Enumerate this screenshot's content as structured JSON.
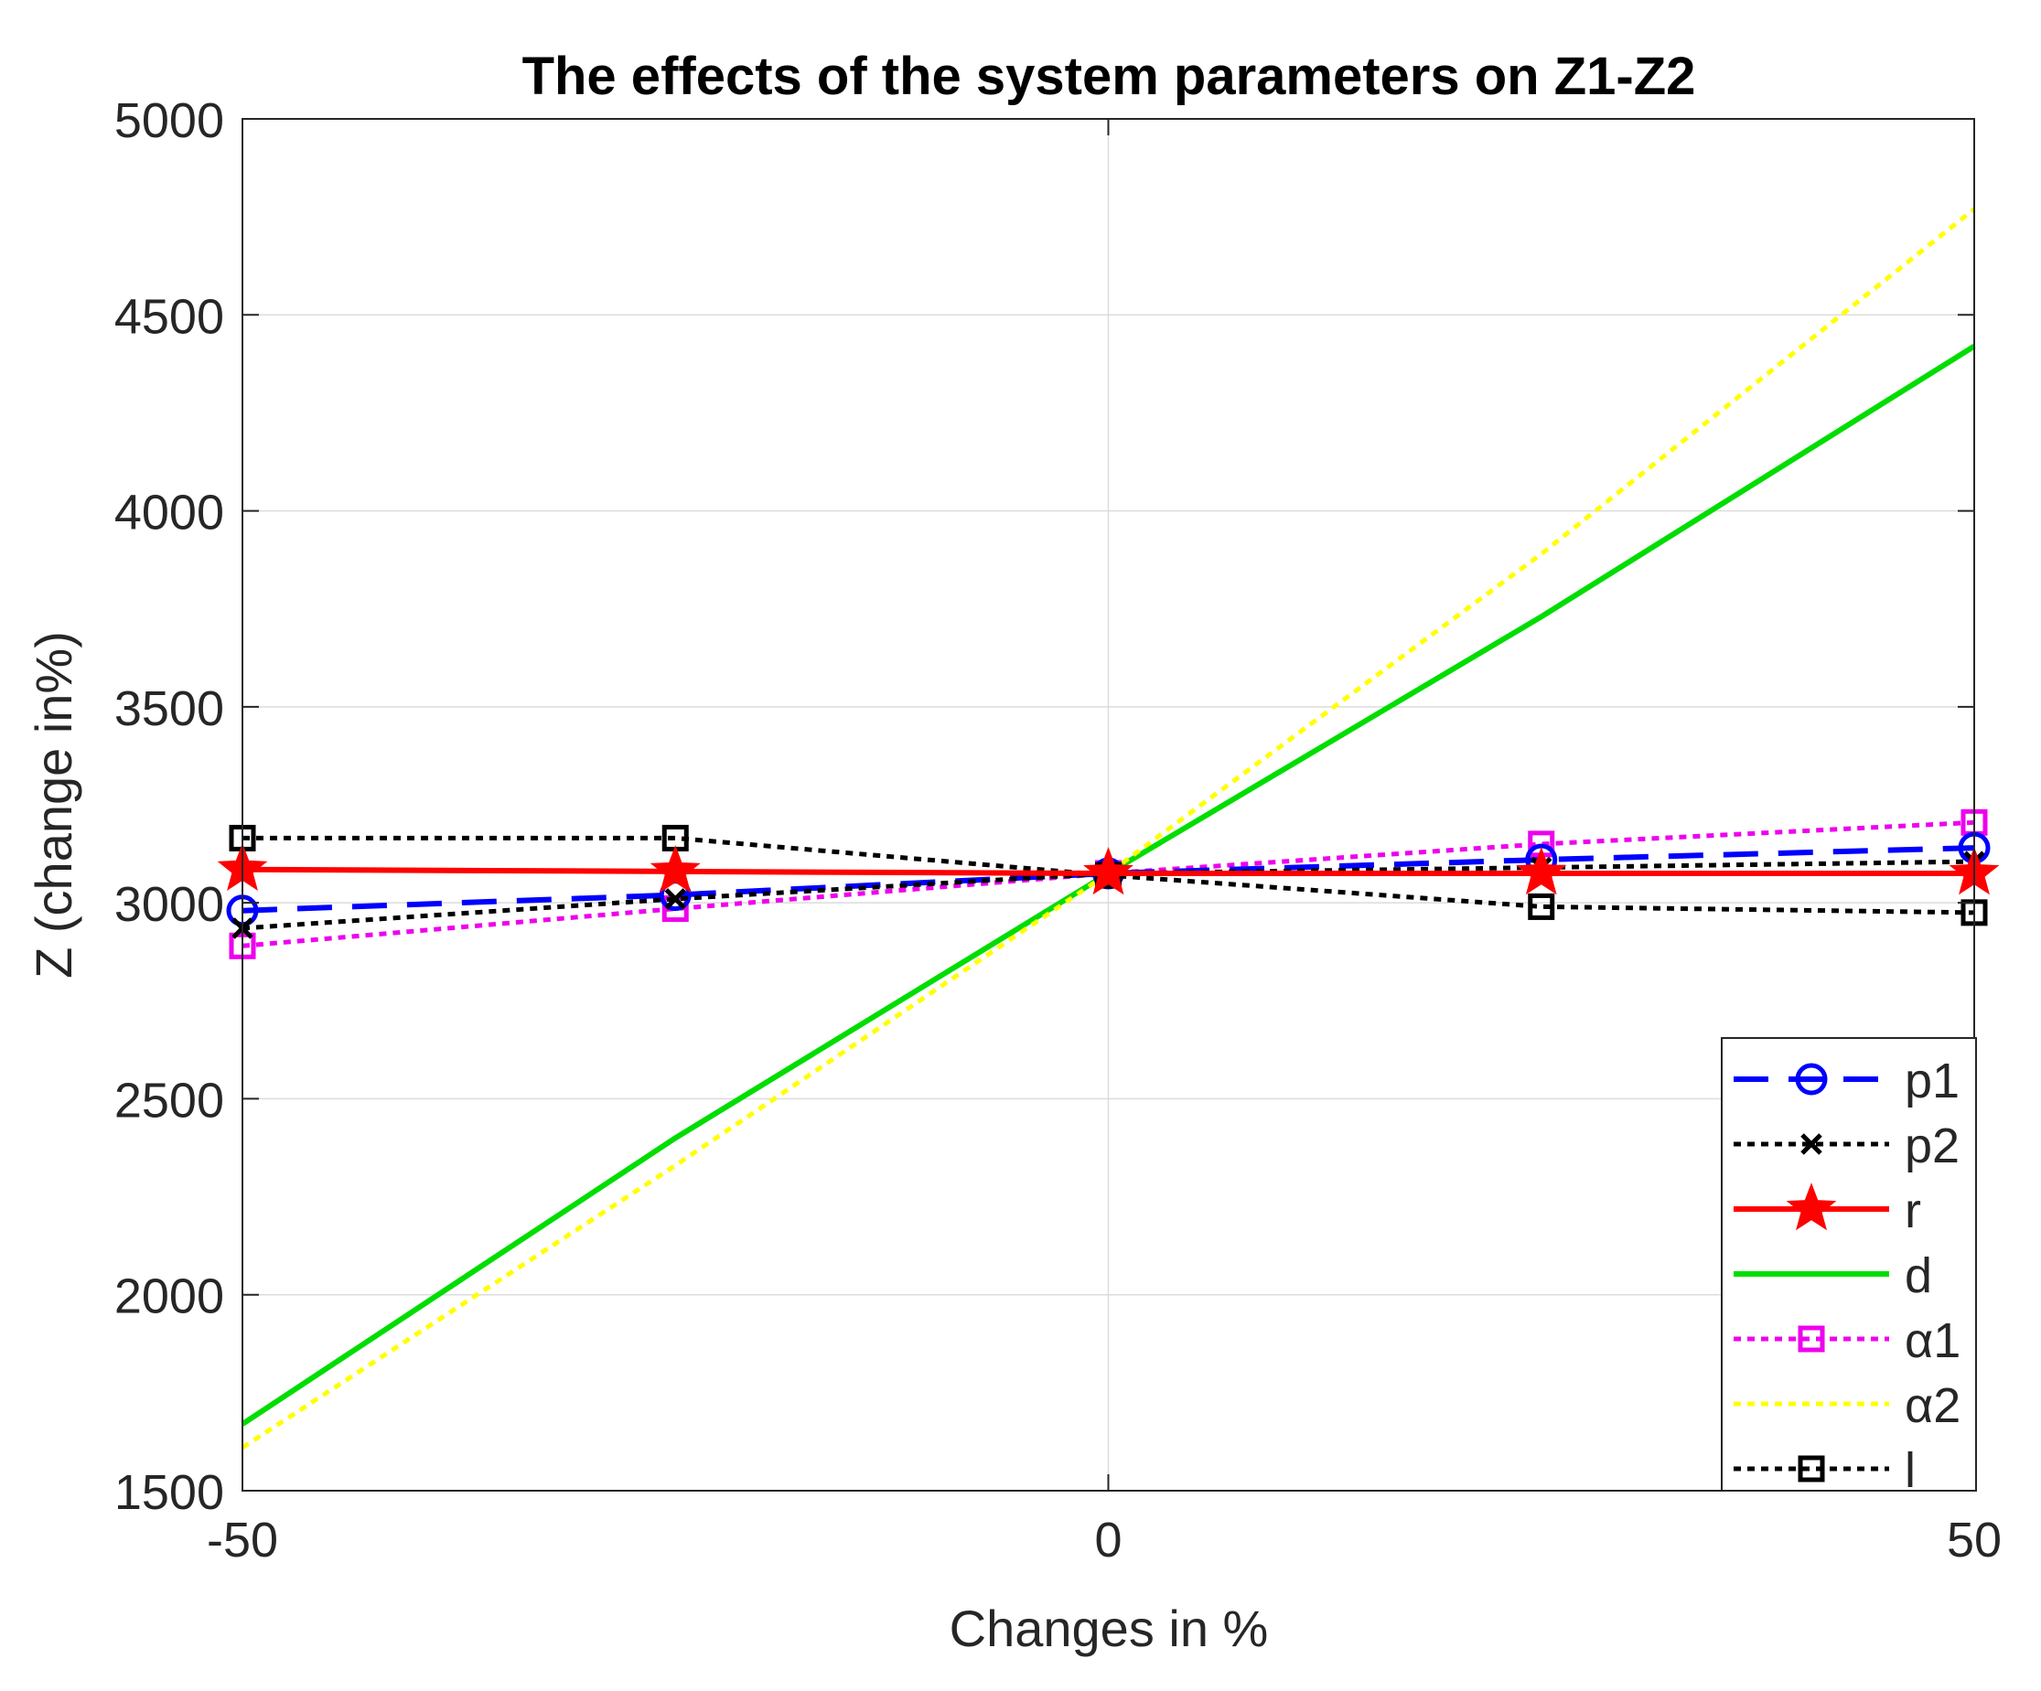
{
  "chart_data": {
    "type": "line",
    "title": "The effects of the system parameters on Z1-Z2",
    "xlabel": "Changes in %",
    "ylabel": "Z (change in%)",
    "xlim": [
      -50,
      50
    ],
    "ylim": [
      1500,
      5000
    ],
    "xticks": [
      -50,
      0,
      50
    ],
    "yticks": [
      1500,
      2000,
      2500,
      3000,
      3500,
      4000,
      4500,
      5000
    ],
    "grid": true,
    "legend_position": "bottom-right",
    "x": [
      -50,
      -25,
      0,
      25,
      50
    ],
    "series": [
      {
        "name": "p1",
        "values": [
          2980,
          3020,
          3075,
          3110,
          3140
        ],
        "color": "#0000ff",
        "dash": "dashed",
        "marker": "circle"
      },
      {
        "name": "p2",
        "values": [
          2935,
          3010,
          3075,
          3090,
          3105
        ],
        "color": "#000000",
        "dash": "dotted",
        "marker": "x"
      },
      {
        "name": "r",
        "values": [
          3085,
          3080,
          3075,
          3075,
          3075
        ],
        "color": "#ff0000",
        "dash": "solid",
        "marker": "star"
      },
      {
        "name": "d",
        "values": [
          1670,
          2400,
          3075,
          3730,
          4420
        ],
        "color": "#00dd00",
        "dash": "solid",
        "marker": "none"
      },
      {
        "name": "α1",
        "values": [
          2890,
          2985,
          3075,
          3150,
          3205
        ],
        "color": "#ee00ee",
        "dash": "dotted",
        "marker": "square"
      },
      {
        "name": "α2",
        "values": [
          1610,
          2330,
          3075,
          3890,
          4770
        ],
        "color": "#ffff00",
        "dash": "dotted",
        "marker": "none"
      },
      {
        "name": "l",
        "values": [
          3165,
          3165,
          3070,
          2990,
          2975
        ],
        "color": "#000000",
        "dash": "dotted",
        "marker": "square"
      }
    ]
  }
}
